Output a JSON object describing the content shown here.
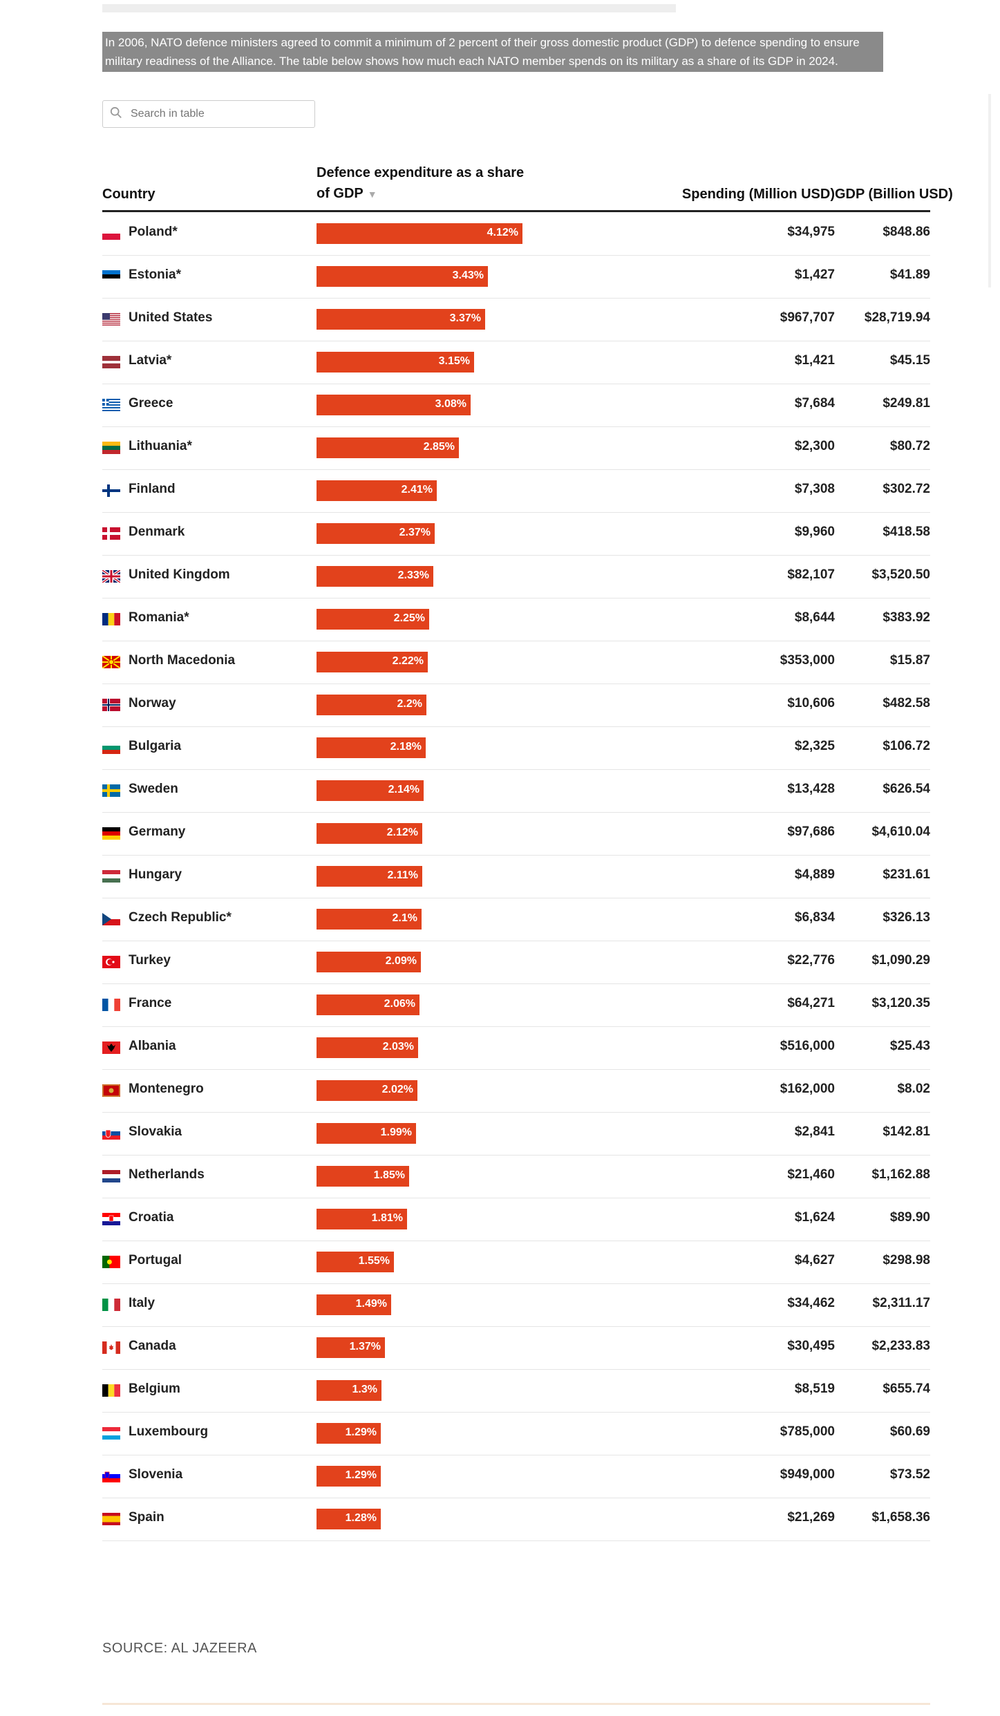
{
  "intro": "In 2006, NATO defence ministers agreed to commit a minimum of 2 percent of their gross domestic product (GDP) to defence spending to ensure military readiness of the Alliance. The table below shows how much each NATO member spends on its military as a share of its GDP in 2024.",
  "search": {
    "placeholder": "Search in table"
  },
  "headers": {
    "country": "Country",
    "share": "Defence expenditure as a share of GDP",
    "spending": "Spending (Million USD)",
    "gdp": "GDP (Billion USD)"
  },
  "source": "SOURCE: AL JAZEERA",
  "colors": {
    "bar": "#e2421c"
  },
  "chart_data": {
    "type": "table",
    "columns": [
      "Country",
      "Defence expenditure as a share of GDP",
      "Spending (Million USD)",
      "GDP (Billion USD)"
    ],
    "rows": [
      {
        "country": "Poland*",
        "flag": "poland",
        "share": 4.12,
        "share_label": "4.12%",
        "spending": "$34,975",
        "gdp": "$848.86"
      },
      {
        "country": "Estonia*",
        "flag": "estonia",
        "share": 3.43,
        "share_label": "3.43%",
        "spending": "$1,427",
        "gdp": "$41.89"
      },
      {
        "country": "United States",
        "flag": "usa",
        "share": 3.37,
        "share_label": "3.37%",
        "spending": "$967,707",
        "gdp": "$28,719.94"
      },
      {
        "country": "Latvia*",
        "flag": "latvia",
        "share": 3.15,
        "share_label": "3.15%",
        "spending": "$1,421",
        "gdp": "$45.15"
      },
      {
        "country": "Greece",
        "flag": "greece",
        "share": 3.08,
        "share_label": "3.08%",
        "spending": "$7,684",
        "gdp": "$249.81"
      },
      {
        "country": "Lithuania*",
        "flag": "lithuania",
        "share": 2.85,
        "share_label": "2.85%",
        "spending": "$2,300",
        "gdp": "$80.72"
      },
      {
        "country": "Finland",
        "flag": "finland",
        "share": 2.41,
        "share_label": "2.41%",
        "spending": "$7,308",
        "gdp": "$302.72"
      },
      {
        "country": "Denmark",
        "flag": "denmark",
        "share": 2.37,
        "share_label": "2.37%",
        "spending": "$9,960",
        "gdp": "$418.58"
      },
      {
        "country": "United Kingdom",
        "flag": "uk",
        "share": 2.33,
        "share_label": "2.33%",
        "spending": "$82,107",
        "gdp": "$3,520.50"
      },
      {
        "country": "Romania*",
        "flag": "romania",
        "share": 2.25,
        "share_label": "2.25%",
        "spending": "$8,644",
        "gdp": "$383.92"
      },
      {
        "country": "North Macedonia",
        "flag": "macedonia",
        "share": 2.22,
        "share_label": "2.22%",
        "spending": "$353,000",
        "gdp": "$15.87"
      },
      {
        "country": "Norway",
        "flag": "norway",
        "share": 2.2,
        "share_label": "2.2%",
        "spending": "$10,606",
        "gdp": "$482.58"
      },
      {
        "country": "Bulgaria",
        "flag": "bulgaria",
        "share": 2.18,
        "share_label": "2.18%",
        "spending": "$2,325",
        "gdp": "$106.72"
      },
      {
        "country": "Sweden",
        "flag": "sweden",
        "share": 2.14,
        "share_label": "2.14%",
        "spending": "$13,428",
        "gdp": "$626.54"
      },
      {
        "country": "Germany",
        "flag": "germany",
        "share": 2.12,
        "share_label": "2.12%",
        "spending": "$97,686",
        "gdp": "$4,610.04"
      },
      {
        "country": "Hungary",
        "flag": "hungary",
        "share": 2.11,
        "share_label": "2.11%",
        "spending": "$4,889",
        "gdp": "$231.61"
      },
      {
        "country": "Czech Republic*",
        "flag": "czech",
        "share": 2.1,
        "share_label": "2.1%",
        "spending": "$6,834",
        "gdp": "$326.13"
      },
      {
        "country": "Turkey",
        "flag": "turkey",
        "share": 2.09,
        "share_label": "2.09%",
        "spending": "$22,776",
        "gdp": "$1,090.29"
      },
      {
        "country": "France",
        "flag": "france",
        "share": 2.06,
        "share_label": "2.06%",
        "spending": "$64,271",
        "gdp": "$3,120.35"
      },
      {
        "country": "Albania",
        "flag": "albania",
        "share": 2.03,
        "share_label": "2.03%",
        "spending": "$516,000",
        "gdp": "$25.43"
      },
      {
        "country": "Montenegro",
        "flag": "montenegro",
        "share": 2.02,
        "share_label": "2.02%",
        "spending": "$162,000",
        "gdp": "$8.02"
      },
      {
        "country": "Slovakia",
        "flag": "slovakia",
        "share": 1.99,
        "share_label": "1.99%",
        "spending": "$2,841",
        "gdp": "$142.81"
      },
      {
        "country": "Netherlands",
        "flag": "netherlands",
        "share": 1.85,
        "share_label": "1.85%",
        "spending": "$21,460",
        "gdp": "$1,162.88"
      },
      {
        "country": "Croatia",
        "flag": "croatia",
        "share": 1.81,
        "share_label": "1.81%",
        "spending": "$1,624",
        "gdp": "$89.90"
      },
      {
        "country": "Portugal",
        "flag": "portugal",
        "share": 1.55,
        "share_label": "1.55%",
        "spending": "$4,627",
        "gdp": "$298.98"
      },
      {
        "country": "Italy",
        "flag": "italy",
        "share": 1.49,
        "share_label": "1.49%",
        "spending": "$34,462",
        "gdp": "$2,311.17"
      },
      {
        "country": "Canada",
        "flag": "canada",
        "share": 1.37,
        "share_label": "1.37%",
        "spending": "$30,495",
        "gdp": "$2,233.83"
      },
      {
        "country": "Belgium",
        "flag": "belgium",
        "share": 1.3,
        "share_label": "1.3%",
        "spending": "$8,519",
        "gdp": "$655.74"
      },
      {
        "country": "Luxembourg",
        "flag": "luxembourg",
        "share": 1.29,
        "share_label": "1.29%",
        "spending": "$785,000",
        "gdp": "$60.69"
      },
      {
        "country": "Slovenia",
        "flag": "slovenia",
        "share": 1.29,
        "share_label": "1.29%",
        "spending": "$949,000",
        "gdp": "$73.52"
      },
      {
        "country": "Spain",
        "flag": "spain",
        "share": 1.28,
        "share_label": "1.28%",
        "spending": "$21,269",
        "gdp": "$1,658.36"
      }
    ],
    "bar_max": 4.12,
    "sort": "share-descending"
  }
}
